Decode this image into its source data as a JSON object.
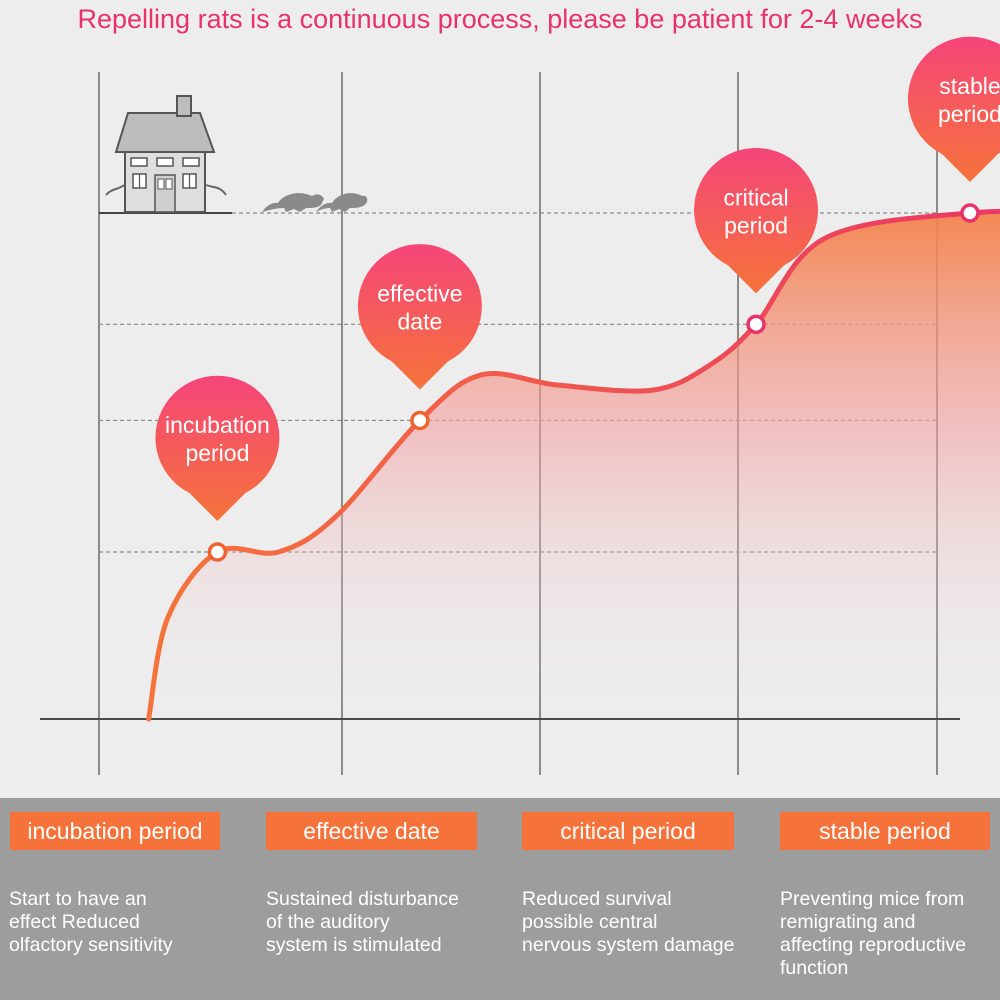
{
  "title": "Repelling rats is a continuous process, please be patient for 2-4 weeks",
  "colors": {
    "curve_start": "#f5733a",
    "curve_end": "#e8326a",
    "pin_top": "#f5457a",
    "pin_bottom": "#f5733a",
    "title": "#e8326a",
    "label_bg": "#f5733a",
    "panel_bg": "#ededed",
    "footer_bg": "#9d9d9d"
  },
  "illustration": {
    "house": "house-icon",
    "rats": "rat-icon"
  },
  "chart_data": {
    "type": "line",
    "title": "Repelling rats is a continuous process, please be patient for 2-4 weeks",
    "xlabel": "",
    "ylabel": "",
    "grid": true,
    "area_fill": true,
    "milestones": [
      {
        "pin": [
          "incubation",
          "period"
        ],
        "x": 0.31,
        "y": 0.33
      },
      {
        "pin": [
          "effective",
          "date"
        ],
        "x": 0.84,
        "y": 0.59
      },
      {
        "pin": [
          "critical",
          "period"
        ],
        "x": 1.72,
        "y": 0.78
      },
      {
        "pin": [
          "stable",
          "period"
        ],
        "x": 2.28,
        "y": 1.0
      }
    ],
    "curve": [
      [
        0.13,
        0.0
      ],
      [
        0.18,
        0.2
      ],
      [
        0.31,
        0.33
      ],
      [
        0.47,
        0.33
      ],
      [
        0.62,
        0.4
      ],
      [
        0.84,
        0.59
      ],
      [
        1.0,
        0.68
      ],
      [
        1.2,
        0.66
      ],
      [
        1.45,
        0.65
      ],
      [
        1.6,
        0.7
      ],
      [
        1.72,
        0.78
      ],
      [
        1.9,
        0.95
      ],
      [
        2.28,
        1.0
      ],
      [
        2.62,
        1.0
      ]
    ]
  },
  "stages": [
    {
      "label": "incubation period",
      "description": [
        "Start to have an",
        "effect Reduced",
        "olfactory sensitivity"
      ]
    },
    {
      "label": "effective date",
      "description": [
        "Sustained disturbance",
        "of the auditory",
        "system is stimulated"
      ]
    },
    {
      "label": "critical period",
      "description": [
        "Reduced survival",
        "possible central",
        "nervous system damage"
      ]
    },
    {
      "label": "stable period",
      "description": [
        "Preventing mice from",
        "remigrating and",
        "affecting reproductive",
        "function"
      ]
    }
  ]
}
